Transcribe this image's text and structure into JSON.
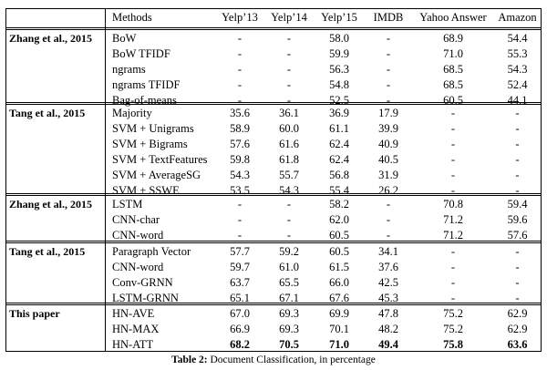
{
  "table": {
    "header": [
      "",
      "Methods",
      "Yelp’13",
      "Yelp’14",
      "Yelp’15",
      "IMDB",
      "Yahoo Answer",
      "Amazon"
    ],
    "groups": [
      {
        "source": "Zhang et al., 2015",
        "rows": [
          {
            "method": "BoW",
            "values": [
              "-",
              "-",
              "58.0",
              "-",
              "68.9",
              "54.4"
            ],
            "bold": []
          },
          {
            "method": "BoW TFIDF",
            "values": [
              "-",
              "-",
              "59.9",
              "-",
              "71.0",
              "55.3"
            ],
            "bold": []
          },
          {
            "method": "ngrams",
            "values": [
              "-",
              "-",
              "56.3",
              "-",
              "68.5",
              "54.3"
            ],
            "bold": []
          },
          {
            "method": "ngrams TFIDF",
            "values": [
              "-",
              "-",
              "54.8",
              "-",
              "68.5",
              "52.4"
            ],
            "bold": []
          },
          {
            "method": "Bag-of-means",
            "values": [
              "-",
              "-",
              "52.5",
              "-",
              "60.5",
              "44.1"
            ],
            "bold": []
          }
        ]
      },
      {
        "source": "Tang et al., 2015",
        "rows": [
          {
            "method": "Majority",
            "values": [
              "35.6",
              "36.1",
              "36.9",
              "17.9",
              "-",
              "-"
            ],
            "bold": []
          },
          {
            "method": "SVM + Unigrams",
            "values": [
              "58.9",
              "60.0",
              "61.1",
              "39.9",
              "-",
              "-"
            ],
            "bold": []
          },
          {
            "method": "SVM + Bigrams",
            "values": [
              "57.6",
              "61.6",
              "62.4",
              "40.9",
              "-",
              "-"
            ],
            "bold": []
          },
          {
            "method": "SVM + TextFeatures",
            "values": [
              "59.8",
              "61.8",
              "62.4",
              "40.5",
              "-",
              "-"
            ],
            "bold": []
          },
          {
            "method": "SVM + AverageSG",
            "values": [
              "54.3",
              "55.7",
              "56.8",
              "31.9",
              "-",
              "-"
            ],
            "bold": []
          },
          {
            "method": "SVM + SSWE",
            "values": [
              "53.5",
              "54.3",
              "55.4",
              "26.2",
              "-",
              "-"
            ],
            "bold": []
          }
        ]
      },
      {
        "source": "Zhang et al., 2015",
        "rows": [
          {
            "method": "LSTM",
            "values": [
              "-",
              "-",
              "58.2",
              "-",
              "70.8",
              "59.4"
            ],
            "bold": []
          },
          {
            "method": "CNN-char",
            "values": [
              "-",
              "-",
              "62.0",
              "-",
              "71.2",
              "59.6"
            ],
            "bold": []
          },
          {
            "method": "CNN-word",
            "values": [
              "-",
              "-",
              "60.5",
              "-",
              "71.2",
              "57.6"
            ],
            "bold": []
          }
        ]
      },
      {
        "source": "Tang et al., 2015",
        "rows": [
          {
            "method": "Paragraph Vector",
            "values": [
              "57.7",
              "59.2",
              "60.5",
              "34.1",
              "-",
              "-"
            ],
            "bold": []
          },
          {
            "method": "CNN-word",
            "values": [
              "59.7",
              "61.0",
              "61.5",
              "37.6",
              "-",
              "-"
            ],
            "bold": []
          },
          {
            "method": "Conv-GRNN",
            "values": [
              "63.7",
              "65.5",
              "66.0",
              "42.5",
              "-",
              "-"
            ],
            "bold": []
          },
          {
            "method": "LSTM-GRNN",
            "values": [
              "65.1",
              "67.1",
              "67.6",
              "45.3",
              "-",
              "-"
            ],
            "bold": []
          }
        ]
      },
      {
        "source": "This paper",
        "rows": [
          {
            "method": "HN-AVE",
            "values": [
              "67.0",
              "69.3",
              "69.9",
              "47.8",
              "75.2",
              "62.9"
            ],
            "bold": []
          },
          {
            "method": "HN-MAX",
            "values": [
              "66.9",
              "69.3",
              "70.1",
              "48.2",
              "75.2",
              "62.9"
            ],
            "bold": []
          },
          {
            "method": "HN-ATT",
            "values": [
              "68.2",
              "70.5",
              "71.0",
              "49.4",
              "75.8",
              "63.6"
            ],
            "bold": [
              0,
              1,
              2,
              3,
              4,
              5
            ]
          }
        ]
      }
    ]
  },
  "caption": {
    "label": "Table 2:",
    "text": "Document Classification, in percentage"
  }
}
